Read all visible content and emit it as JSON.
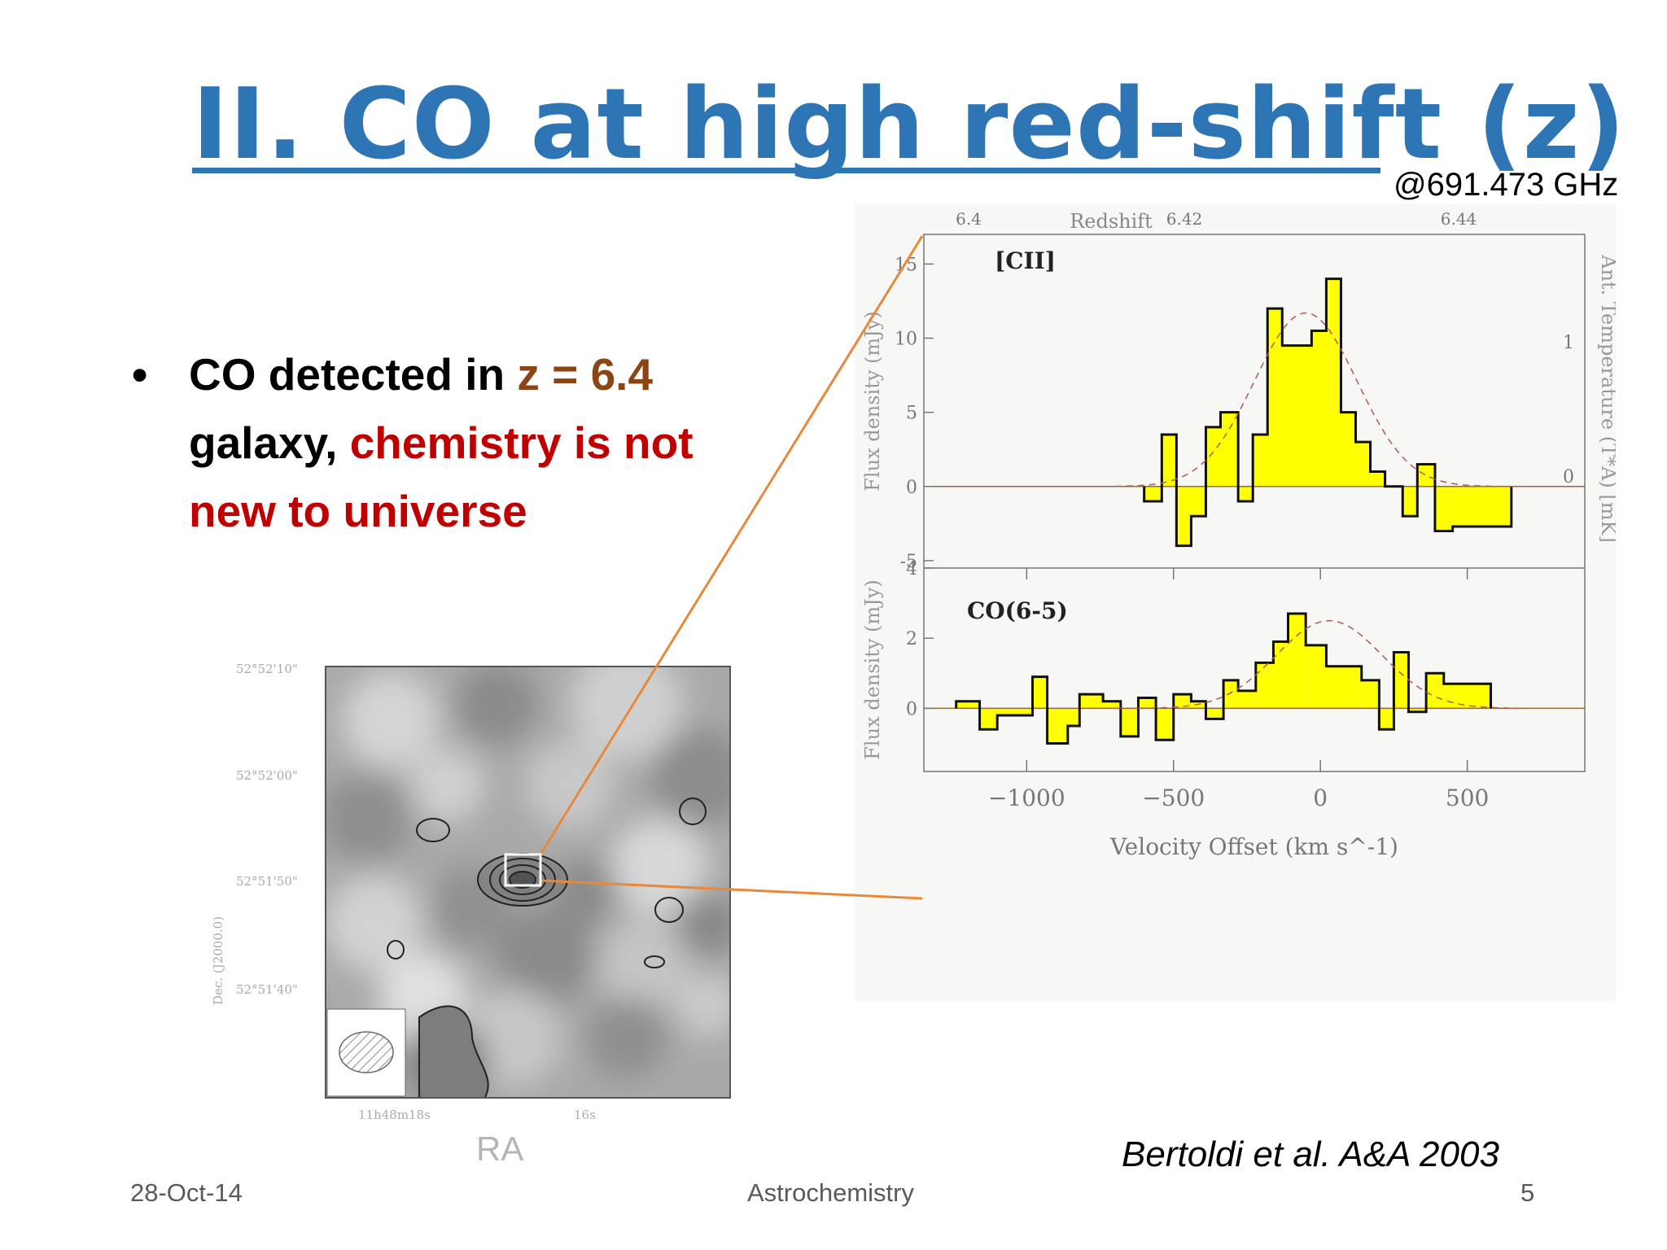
{
  "slide": {
    "title": "II. CO at high red-shift (z)",
    "frequency_label": "@691.473 GHz",
    "bullet": {
      "part1": "CO detected in ",
      "part2": "z = 6.4",
      "part3": "galaxy, ",
      "part4": "chemistry is not new to universe"
    },
    "citation": "Bertoldi et al. A&A 2003",
    "footer": {
      "date": "28-Oct-14",
      "title": "Astrochemistry",
      "page": "5"
    },
    "colors": {
      "title": "#2e75b6",
      "highlight_z": "#8b4513",
      "highlight_red": "#c00000",
      "callout_line": "#e8883a",
      "spectrum_fill": "#ffff00"
    }
  },
  "map": {
    "ra_label": "RA",
    "dec_axis_label": "Dec. (J2000.0)",
    "dec_ticks": [
      "52°52'10\"",
      "52°52'00\"",
      "52°51'50\"",
      "52°51'40\""
    ],
    "ra_ticks": [
      "11h48m18s",
      "16s"
    ]
  },
  "chart_data": [
    {
      "type": "line",
      "panel": "top",
      "label": "[CII]",
      "ylabel": "Flux density (mJy)",
      "right_ylabel": "Ant. Temperature (T*A) [mK]",
      "top_xlabel": "Redshift",
      "top_ticks": [
        "6.4",
        "6.42",
        "6.44"
      ],
      "right_ticks": [
        "1",
        "0"
      ],
      "yticks": [
        15,
        10,
        5,
        0,
        -5
      ],
      "ylim": [
        -5.5,
        17
      ],
      "xlim": [
        -1350,
        900
      ],
      "edges": [
        -600,
        -540,
        -490,
        -440,
        -390,
        -340,
        -280,
        -230,
        -180,
        -130,
        -80,
        -30,
        20,
        70,
        120,
        170,
        220,
        280,
        330,
        390,
        450,
        480,
        520,
        580,
        650
      ],
      "values": [
        -1,
        3.5,
        -4,
        -2,
        4,
        5,
        -1,
        3.5,
        12,
        9.5,
        9.5,
        10.5,
        14,
        5,
        3,
        1,
        0,
        -2,
        1.5,
        -3,
        -2.7,
        -2.7,
        -2.7,
        -2.7
      ],
      "fit": {
        "center": -50,
        "amplitude": 11.7,
        "sigma": 175
      }
    },
    {
      "type": "line",
      "panel": "bottom",
      "label": "CO(6-5)",
      "ylabel": "Flux density (mJy)",
      "xlabel": "Velocity Offset (km s^-1)",
      "xticks": [
        -1000,
        -500,
        0,
        500
      ],
      "yticks": [
        4,
        2,
        0
      ],
      "ylim": [
        -1.8,
        4
      ],
      "xlim": [
        -1350,
        900
      ],
      "edges": [
        -1240,
        -1160,
        -1100,
        -1040,
        -980,
        -930,
        -860,
        -820,
        -740,
        -680,
        -620,
        -560,
        -500,
        -440,
        -390,
        -330,
        -280,
        -220,
        -160,
        -110,
        -50,
        20,
        80,
        140,
        200,
        250,
        300,
        360,
        420,
        480,
        530,
        580
      ],
      "values": [
        0.2,
        -0.6,
        -0.2,
        -0.2,
        0.9,
        -1.0,
        -0.5,
        0.4,
        0.2,
        -0.8,
        0.3,
        -0.9,
        0.4,
        0.2,
        -0.3,
        0.8,
        0.5,
        1.3,
        1.9,
        2.7,
        1.8,
        1.2,
        1.2,
        0.8,
        -0.6,
        1.6,
        -0.1,
        1.0,
        0.7,
        0.7,
        0.7
      ],
      "fit": {
        "center": 30,
        "amplitude": 2.5,
        "sigma": 180
      }
    }
  ]
}
